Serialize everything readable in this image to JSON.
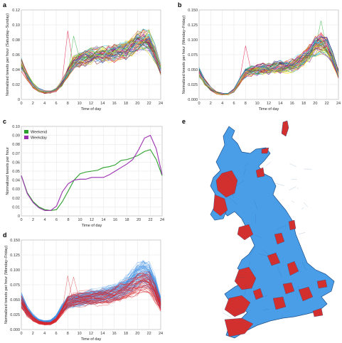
{
  "figure": {
    "panels": [
      "a",
      "b",
      "c",
      "d",
      "e"
    ]
  },
  "chart_data": [
    {
      "id": "a",
      "type": "line",
      "xlabel": "Time of day",
      "ylabel": "Normalized tweets per hour (Saturday–Sunday)",
      "xlim": [
        0,
        24
      ],
      "ylim": [
        0,
        0.12
      ],
      "xticks": [
        "0",
        "2",
        "4",
        "6",
        "8",
        "10",
        "12",
        "14",
        "16",
        "18",
        "20",
        "22",
        "24"
      ],
      "yticks": [
        "0",
        "0.02",
        "0.04",
        "0.06",
        "0.08",
        "0.10",
        "0.12"
      ],
      "grid": true,
      "x": [
        0,
        1,
        2,
        3,
        4,
        5,
        6,
        7,
        8,
        9,
        10,
        11,
        12,
        13,
        14,
        15,
        16,
        17,
        18,
        19,
        20,
        21,
        22,
        23,
        24
      ],
      "bundle_mean": [
        0.047,
        0.03,
        0.019,
        0.013,
        0.01,
        0.01,
        0.013,
        0.022,
        0.036,
        0.048,
        0.053,
        0.056,
        0.058,
        0.059,
        0.06,
        0.061,
        0.062,
        0.064,
        0.067,
        0.071,
        0.076,
        0.079,
        0.077,
        0.062,
        0.04
      ],
      "series_count": 60,
      "outlier_peaks": [
        {
          "x": 8,
          "y": 0.092
        },
        {
          "x": 9,
          "y": 0.085
        }
      ]
    },
    {
      "id": "b",
      "type": "line",
      "xlabel": "Time of day",
      "ylabel": "Normalized tweets per hour (Monday–Friday)",
      "xlim": [
        0,
        24
      ],
      "ylim": [
        0,
        0.15
      ],
      "xticks": [
        "0",
        "2",
        "4",
        "6",
        "8",
        "10",
        "12",
        "14",
        "16",
        "18",
        "20",
        "22",
        "24"
      ],
      "yticks": [
        "0.000",
        "0.025",
        "0.050",
        "0.075",
        "0.100",
        "0.125",
        "0.150"
      ],
      "grid": true,
      "x": [
        0,
        1,
        2,
        3,
        4,
        5,
        6,
        7,
        8,
        9,
        10,
        11,
        12,
        13,
        14,
        15,
        16,
        17,
        18,
        19,
        20,
        21,
        22,
        23,
        24
      ],
      "bundle_mean": [
        0.045,
        0.028,
        0.018,
        0.011,
        0.009,
        0.009,
        0.015,
        0.03,
        0.045,
        0.048,
        0.049,
        0.051,
        0.052,
        0.053,
        0.054,
        0.055,
        0.057,
        0.062,
        0.068,
        0.078,
        0.09,
        0.094,
        0.087,
        0.068,
        0.042
      ],
      "series_count": 60,
      "outlier_peaks": [
        {
          "x": 8,
          "y": 0.09
        },
        {
          "x": 21,
          "y": 0.132
        }
      ]
    },
    {
      "id": "c",
      "type": "line",
      "xlabel": "Time of day",
      "ylabel": "Normalized tweets per hour",
      "xlim": [
        0,
        24
      ],
      "ylim": [
        0,
        0.1
      ],
      "xticks": [
        "0",
        "2",
        "4",
        "6",
        "8",
        "10",
        "12",
        "14",
        "16",
        "18",
        "20",
        "22",
        "24"
      ],
      "yticks": [
        "0",
        "0.01",
        "0.02",
        "0.03",
        "0.04",
        "0.05",
        "0.06",
        "0.07",
        "0.08",
        "0.09",
        "0.10"
      ],
      "grid": true,
      "legend": "top-left",
      "x": [
        0,
        1,
        2,
        3,
        4,
        5,
        6,
        7,
        8,
        9,
        10,
        11,
        12,
        13,
        14,
        15,
        16,
        17,
        18,
        19,
        20,
        21,
        22,
        23,
        24
      ],
      "series": [
        {
          "name": "Weekend",
          "color": "#2ca02c",
          "values": [
            0.045,
            0.026,
            0.016,
            0.01,
            0.007,
            0.006,
            0.007,
            0.016,
            0.028,
            0.04,
            0.047,
            0.049,
            0.05,
            0.051,
            0.054,
            0.055,
            0.057,
            0.062,
            0.063,
            0.065,
            0.068,
            0.072,
            0.074,
            0.063,
            0.045
          ]
        },
        {
          "name": "Weekday",
          "color": "#9b2fb0",
          "values": [
            0.045,
            0.025,
            0.015,
            0.009,
            0.006,
            0.006,
            0.011,
            0.027,
            0.036,
            0.04,
            0.041,
            0.041,
            0.043,
            0.043,
            0.043,
            0.046,
            0.05,
            0.054,
            0.058,
            0.063,
            0.074,
            0.087,
            0.09,
            0.075,
            0.046
          ]
        }
      ]
    },
    {
      "id": "d",
      "type": "line",
      "xlabel": "Time of day",
      "ylabel": "Normalized tweets per hour (Monday–Friday)",
      "xlim": [
        0,
        24
      ],
      "ylim": [
        0,
        0.15
      ],
      "xticks": [
        "0",
        "2",
        "4",
        "6",
        "8",
        "10",
        "12",
        "14",
        "16",
        "18",
        "20",
        "22",
        "24"
      ],
      "yticks": [
        "0.000",
        "0.025",
        "0.050",
        "0.075",
        "0.100",
        "0.125",
        "0.150"
      ],
      "grid": true,
      "x": [
        0,
        1,
        2,
        3,
        4,
        5,
        6,
        7,
        8,
        9,
        10,
        11,
        12,
        13,
        14,
        15,
        16,
        17,
        18,
        19,
        20,
        21,
        22,
        23,
        24
      ],
      "series": [
        {
          "group": "blue",
          "color": "#3a8ee6",
          "mean": [
            0.05,
            0.032,
            0.021,
            0.014,
            0.012,
            0.013,
            0.02,
            0.034,
            0.045,
            0.048,
            0.05,
            0.052,
            0.054,
            0.055,
            0.057,
            0.059,
            0.062,
            0.066,
            0.072,
            0.08,
            0.09,
            0.095,
            0.09,
            0.072,
            0.044
          ],
          "count": 80
        },
        {
          "group": "red",
          "color": "#d6262e",
          "mean": [
            0.046,
            0.029,
            0.018,
            0.012,
            0.01,
            0.01,
            0.016,
            0.031,
            0.046,
            0.05,
            0.051,
            0.052,
            0.053,
            0.054,
            0.055,
            0.056,
            0.058,
            0.062,
            0.066,
            0.07,
            0.076,
            0.08,
            0.078,
            0.062,
            0.04
          ],
          "count": 40
        }
      ],
      "outlier_peaks": [
        {
          "x": 8,
          "y": 0.09
        },
        {
          "x": 9,
          "y": 0.088
        }
      ]
    }
  ],
  "map": {
    "id": "e",
    "land_color": "#4a9ee8",
    "highlight_color": "#d22f2f",
    "border_color": "#1d4f8a"
  }
}
